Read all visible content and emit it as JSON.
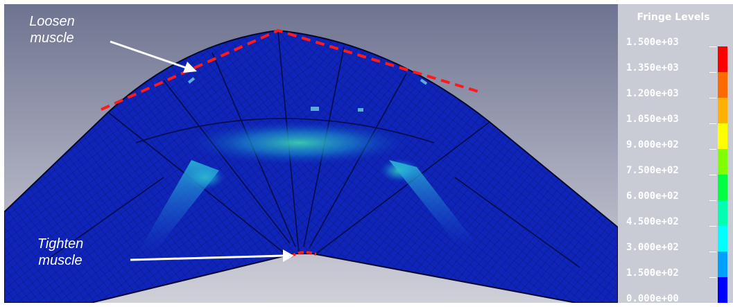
{
  "annotations": {
    "loosen_line1": "Loosen",
    "loosen_line2": "muscle",
    "tighten_line1": "Tighten",
    "tighten_line2": "muscle"
  },
  "legend": {
    "title": "Fringe Levels",
    "levels": [
      "1.500e+03",
      "1.350e+03",
      "1.200e+03",
      "1.050e+03",
      "9.000e+02",
      "7.500e+02",
      "6.000e+02",
      "4.500e+02",
      "3.000e+02",
      "1.500e+02",
      "0.000e+00"
    ],
    "colors": [
      "#ff0000",
      "#ff6a00",
      "#ffb000",
      "#ffff00",
      "#7fff00",
      "#00ff40",
      "#00ffb0",
      "#00ffff",
      "#00a0ff",
      "#0000ff"
    ]
  }
}
